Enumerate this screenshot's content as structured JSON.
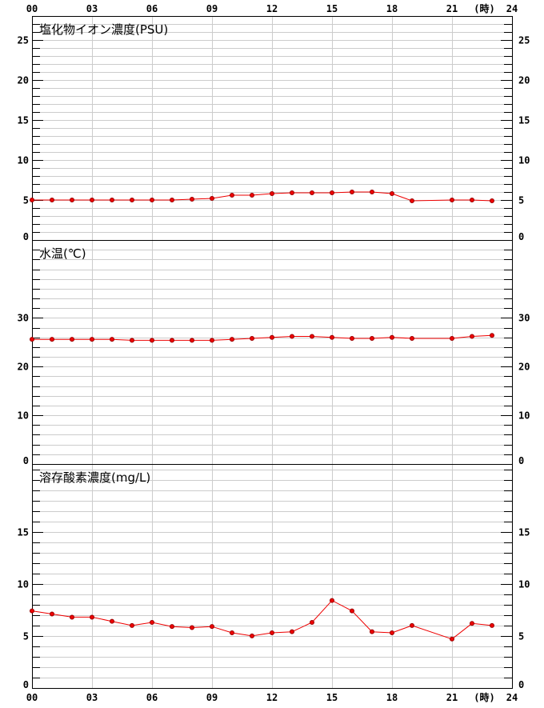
{
  "colors": {
    "series": "#ee0000",
    "grid": "#cccccc",
    "axis": "#000000",
    "background": "#ffffff"
  },
  "hour_axis": {
    "ticks": [
      "00",
      "03",
      "06",
      "09",
      "12",
      "15",
      "18",
      "21",
      "24"
    ],
    "unit": "(時)"
  },
  "chart_data": [
    {
      "type": "line",
      "title": "塩化物イオン濃度(PSU)",
      "x": [
        0,
        1,
        2,
        3,
        4,
        5,
        6,
        7,
        8,
        9,
        10,
        11,
        12,
        13,
        14,
        15,
        16,
        17,
        18,
        19,
        21,
        22,
        23
      ],
      "values": [
        5.0,
        5.0,
        5.0,
        5.0,
        5.0,
        5.0,
        5.0,
        5.0,
        5.1,
        5.2,
        5.6,
        5.6,
        5.8,
        5.9,
        5.9,
        5.9,
        6.0,
        6.0,
        5.8,
        4.9,
        5.0,
        5.0,
        4.9
      ],
      "xlim": [
        0,
        24
      ],
      "ylim": [
        0,
        28
      ],
      "y_ticks": [
        0,
        5,
        10,
        15,
        20,
        25
      ],
      "y_tick_labels": [
        "0",
        "5",
        "10",
        "15",
        "20",
        "25"
      ],
      "grid": true
    },
    {
      "type": "line",
      "title": "水温(℃)",
      "x": [
        0,
        1,
        2,
        3,
        4,
        5,
        6,
        7,
        8,
        9,
        10,
        11,
        12,
        13,
        14,
        15,
        16,
        17,
        18,
        19,
        21,
        22,
        23
      ],
      "values": [
        25.6,
        25.6,
        25.6,
        25.6,
        25.6,
        25.4,
        25.4,
        25.4,
        25.4,
        25.4,
        25.6,
        25.8,
        26.0,
        26.2,
        26.2,
        26.0,
        25.8,
        25.8,
        26.0,
        25.8,
        25.8,
        26.2,
        26.4
      ],
      "xlim": [
        0,
        24
      ],
      "ylim": [
        0,
        46
      ],
      "y_ticks": [
        0,
        10,
        20,
        30
      ],
      "y_tick_labels": [
        "0",
        "10",
        "20",
        "30"
      ],
      "grid": true
    },
    {
      "type": "line",
      "title": "溶存酸素濃度(mg/L)",
      "x": [
        0,
        1,
        2,
        3,
        4,
        5,
        6,
        7,
        8,
        9,
        10,
        11,
        12,
        13,
        14,
        15,
        16,
        17,
        18,
        19,
        21,
        22,
        23
      ],
      "values": [
        7.4,
        7.1,
        6.8,
        6.8,
        6.4,
        6.0,
        6.3,
        5.9,
        5.8,
        5.9,
        5.3,
        5.0,
        5.3,
        5.4,
        6.3,
        8.4,
        7.4,
        5.4,
        5.3,
        6.0,
        4.7,
        6.2,
        6.0
      ],
      "xlim": [
        0,
        24
      ],
      "ylim": [
        0,
        21.5
      ],
      "y_ticks": [
        0,
        5,
        10,
        15
      ],
      "y_tick_labels": [
        "0",
        "5",
        "10",
        "15"
      ],
      "grid": true
    }
  ]
}
